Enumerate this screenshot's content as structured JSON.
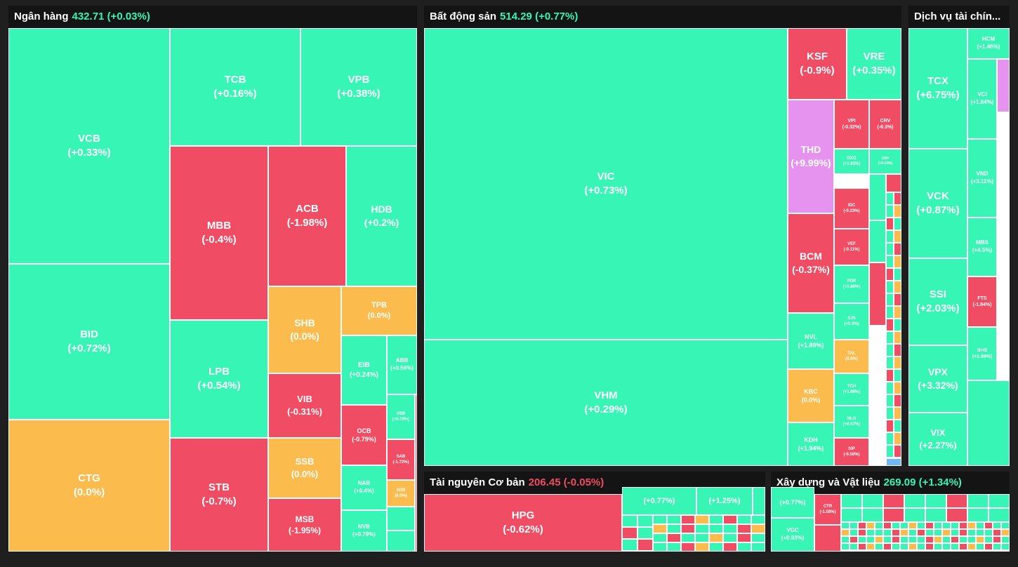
{
  "colors": {
    "up": "#37f5b4",
    "down": "#f04c63",
    "flat": "#fbbb4d",
    "ceiling": "#e693f0",
    "floor": "#6fb7f5"
  },
  "sectors": [
    {
      "id": "ngan-hang",
      "name": "Ngân hàng",
      "value": "432.71",
      "change": "(+0.03%)",
      "dir": "up",
      "cells": [
        {
          "t": "VCB",
          "c": "(+0.33%)",
          "s": "up"
        },
        {
          "t": "BID",
          "c": "(+0.72%)",
          "s": "up"
        },
        {
          "t": "CTG",
          "c": "(0.0%)",
          "s": "flat"
        },
        {
          "t": "TCB",
          "c": "(+0.16%)",
          "s": "up"
        },
        {
          "t": "VPB",
          "c": "(+0.38%)",
          "s": "up"
        },
        {
          "t": "MBB",
          "c": "(-0.4%)",
          "s": "down"
        },
        {
          "t": "LPB",
          "c": "(+0.54%)",
          "s": "up"
        },
        {
          "t": "STB",
          "c": "(-0.7%)",
          "s": "down"
        },
        {
          "t": "ACB",
          "c": "(-1.98%)",
          "s": "down"
        },
        {
          "t": "HDB",
          "c": "(+0.2%)",
          "s": "up"
        },
        {
          "t": "SHB",
          "c": "(0.0%)",
          "s": "flat"
        },
        {
          "t": "VIB",
          "c": "(-0.31%)",
          "s": "down"
        },
        {
          "t": "SSB",
          "c": "(0.0%)",
          "s": "flat"
        },
        {
          "t": "MSB",
          "c": "(-1.95%)",
          "s": "down"
        },
        {
          "t": "TPB",
          "c": "(0.0%)",
          "s": "flat"
        },
        {
          "t": "EIB",
          "c": "(+0.24%)",
          "s": "up"
        },
        {
          "t": "ABB",
          "c": "(+0.59%)",
          "s": "up"
        },
        {
          "t": "OCB",
          "c": "(-0.79%)",
          "s": "down"
        },
        {
          "t": "NAB",
          "c": "(+0.4%)",
          "s": "up"
        },
        {
          "t": "NVB",
          "c": "(+0.79%)",
          "s": "up"
        },
        {
          "t": "VBB",
          "c": "(+0.76%)",
          "s": "up"
        },
        {
          "t": "SAB",
          "c": "(-1.72%)",
          "s": "down"
        },
        {
          "t": "SGB",
          "c": "(0.0%)",
          "s": "flat"
        },
        {
          "t": "",
          "c": "",
          "s": "up"
        },
        {
          "t": "",
          "c": "",
          "s": "up"
        },
        {
          "t": "",
          "c": "",
          "s": "down"
        }
      ]
    },
    {
      "id": "bat-dong-san",
      "name": "Bất động sản",
      "value": "514.29",
      "change": "(+0.77%)",
      "dir": "up",
      "cells": [
        {
          "t": "VIC",
          "c": "(+0.73%)",
          "s": "up"
        },
        {
          "t": "VHM",
          "c": "(+0.29%)",
          "s": "up"
        },
        {
          "t": "KSF",
          "c": "(-0.9%)",
          "s": "down"
        },
        {
          "t": "VRE",
          "c": "(+0.35%)",
          "s": "up"
        },
        {
          "t": "THD",
          "c": "(+9.99%)",
          "s": "ceiling"
        },
        {
          "t": "BCM",
          "c": "(-0.37%)",
          "s": "down"
        },
        {
          "t": "NVL",
          "c": "(+1.89%)",
          "s": "up"
        },
        {
          "t": "KBC",
          "c": "(0.0%)",
          "s": "flat"
        },
        {
          "t": "KDH",
          "c": "(+1.94%)",
          "s": "up"
        },
        {
          "t": "VPI",
          "c": "(-0.32%)",
          "s": "down"
        },
        {
          "t": "CRV",
          "c": "(-6.3%)",
          "s": "down"
        },
        {
          "t": "DXG",
          "c": "(+1.92%)",
          "s": "up"
        },
        {
          "t": "SSH",
          "c": "(+0.24%)",
          "s": "up"
        },
        {
          "t": "IDC",
          "c": "(-0.23%)",
          "s": "down"
        },
        {
          "t": "VEF",
          "c": "(-0.11%)",
          "s": "down"
        },
        {
          "t": "PDR",
          "c": "(+1.86%)",
          "s": "up"
        },
        {
          "t": "SJS",
          "c": "(+0.2%)",
          "s": "up"
        },
        {
          "t": "TAL",
          "c": "(0.0%)",
          "s": "flat"
        },
        {
          "t": "TCH",
          "c": "(+1.99%)",
          "s": "up"
        },
        {
          "t": "NLG",
          "c": "(+0.57%)",
          "s": "up"
        },
        {
          "t": "SIP",
          "c": "(-0.58%)",
          "s": "down"
        },
        {
          "t": "",
          "c": "",
          "s": "up"
        },
        {
          "t": "",
          "c": "",
          "s": "down"
        },
        {
          "t": "",
          "c": "",
          "s": "up"
        },
        {
          "t": "",
          "c": "",
          "s": "down"
        },
        {
          "t": "",
          "c": "",
          "s": "up"
        },
        {
          "t": "",
          "c": "",
          "s": "floor"
        }
      ]
    },
    {
      "id": "dich-vu-tai-chinh",
      "name": "Dịch vụ tài chín...",
      "value": "",
      "change": "",
      "dir": "up",
      "cells": [
        {
          "t": "TCX",
          "c": "(+6.75%)",
          "s": "up"
        },
        {
          "t": "VCK",
          "c": "(+0.87%)",
          "s": "up"
        },
        {
          "t": "SSI",
          "c": "(+2.03%)",
          "s": "up"
        },
        {
          "t": "VPX",
          "c": "(+3.32%)",
          "s": "up"
        },
        {
          "t": "VIX",
          "c": "(+2.27%)",
          "s": "up"
        },
        {
          "t": "HCM",
          "c": "(+1.46%)",
          "s": "up"
        },
        {
          "t": "VCI",
          "c": "(+1.64%)",
          "s": "up"
        },
        {
          "t": "VND",
          "c": "(+3.11%)",
          "s": "up"
        },
        {
          "t": "MBS",
          "c": "(+4.5%)",
          "s": "up"
        },
        {
          "t": "FTS",
          "c": "(-1.84%)",
          "s": "down"
        },
        {
          "t": "SHS",
          "c": "(+1.59%)",
          "s": "up"
        },
        {
          "t": "",
          "c": "",
          "s": "ceiling"
        },
        {
          "t": "",
          "c": "",
          "s": "up"
        }
      ]
    },
    {
      "id": "tai-nguyen-co-ban",
      "name": "Tài nguyên Cơ bản",
      "value": "206.45",
      "change": "(-0.05%)",
      "dir": "down",
      "cells": [
        {
          "t": "HPG",
          "c": "(-0.62%)",
          "s": "down"
        },
        {
          "t": "",
          "c": "(+0.77%)",
          "s": "up"
        },
        {
          "t": "",
          "c": "(+1.25%)",
          "s": "up"
        },
        {
          "t": "",
          "c": "",
          "s": "up"
        },
        {
          "t": "",
          "c": "",
          "s": "down"
        },
        {
          "t": "",
          "c": "",
          "s": "flat"
        }
      ]
    },
    {
      "id": "xay-dung-va-vat-lieu",
      "name": "Xây dựng và Vật liệu",
      "value": "269.09",
      "change": "(+1.34%)",
      "dir": "up",
      "cells": [
        {
          "t": "",
          "c": "(+0.77%)",
          "s": "up"
        },
        {
          "t": "VGC",
          "c": "(+0.93%)",
          "s": "up"
        },
        {
          "t": "CTR",
          "c": "(-1.58%)",
          "s": "down"
        },
        {
          "t": "",
          "c": "",
          "s": "down"
        },
        {
          "t": "",
          "c": "",
          "s": "up"
        },
        {
          "t": "",
          "c": "",
          "s": "flat"
        }
      ]
    }
  ]
}
